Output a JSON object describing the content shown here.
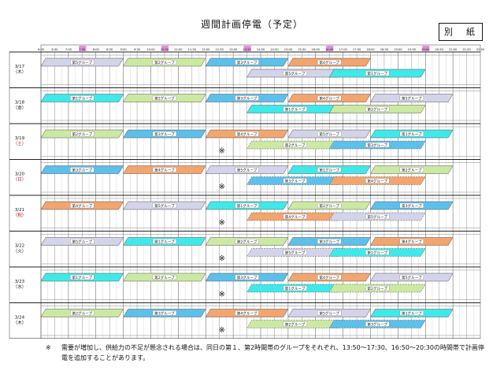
{
  "title": "週間計画停電（予定）",
  "attachment_label": "別　紙",
  "time_header": [
    "6:00",
    "6:30",
    "7:00",
    "7:30",
    "8:00",
    "8:30",
    "9:00",
    "9:30",
    "10:00",
    "10:30",
    "11:00",
    "11:30",
    "12:00",
    "12:30",
    "13:00",
    "13:30",
    "14:00",
    "14:30",
    "15:00",
    "15:30",
    "16:00",
    "16:30",
    "17:00",
    "17:30",
    "18:00",
    "18:30",
    "19:00",
    "19:30",
    "20:00",
    "20:30",
    "21:00",
    "21:30",
    "22:00"
  ],
  "group_names": [
    "第1グループ",
    "第2グループ",
    "第3グループ",
    "第4グループ",
    "第5グループ"
  ],
  "extra_mark": "※",
  "colors": {
    "g1": "#3fe9e9",
    "g2": "#cbe9a2",
    "g3": "#5cc0ea",
    "g4": "#f2a56e",
    "g5": "#d3d3e9",
    "header_pink": "#e58ce0",
    "grid": "#666666"
  },
  "days": [
    {
      "date": "3/17",
      "dow": "（木）",
      "holiday": false,
      "row1": [
        5,
        2,
        3,
        4
      ],
      "row2": [
        5,
        1
      ],
      "extra": false
    },
    {
      "date": "3/18",
      "dow": "（金）",
      "holiday": false,
      "row1": [
        1,
        2,
        3,
        4,
        5
      ],
      "row2": [
        1,
        2
      ],
      "extra": false
    },
    {
      "date": "3/19",
      "dow": "（土）",
      "holiday": true,
      "row1": [
        2,
        3,
        4,
        5,
        1
      ],
      "row2": [
        2,
        3
      ],
      "extra": true
    },
    {
      "date": "3/20",
      "dow": "（日）",
      "holiday": true,
      "row1": [
        3,
        4,
        5,
        1,
        2
      ],
      "row2": [
        3,
        4
      ],
      "extra": true
    },
    {
      "date": "3/21",
      "dow": "（祝）",
      "holiday": true,
      "row1": [
        4,
        5,
        1,
        2,
        3
      ],
      "row2": [
        4,
        5
      ],
      "extra": true
    },
    {
      "date": "3/22",
      "dow": "（火）",
      "holiday": false,
      "row1": [
        5,
        1,
        2,
        3,
        4
      ],
      "row2": [
        5,
        1
      ],
      "extra": true
    },
    {
      "date": "3/23",
      "dow": "（水）",
      "holiday": false,
      "row1": [
        1,
        2,
        3,
        4,
        5
      ],
      "row2": [
        1,
        2
      ],
      "extra": true
    },
    {
      "date": "3/24",
      "dow": "（木）",
      "holiday": false,
      "row1": [
        2,
        3,
        4,
        5,
        1
      ],
      "row2": [
        2,
        3
      ],
      "extra": true
    }
  ],
  "footnote": {
    "mark": "※",
    "text": "需要が増加し、供給力の不足が懸念される場合は、同日の第１、第2時間帯のグループをそれぞれ、13:50～17:30、16:50～20:30の時間帯で計画停電を追加することがあります。"
  }
}
